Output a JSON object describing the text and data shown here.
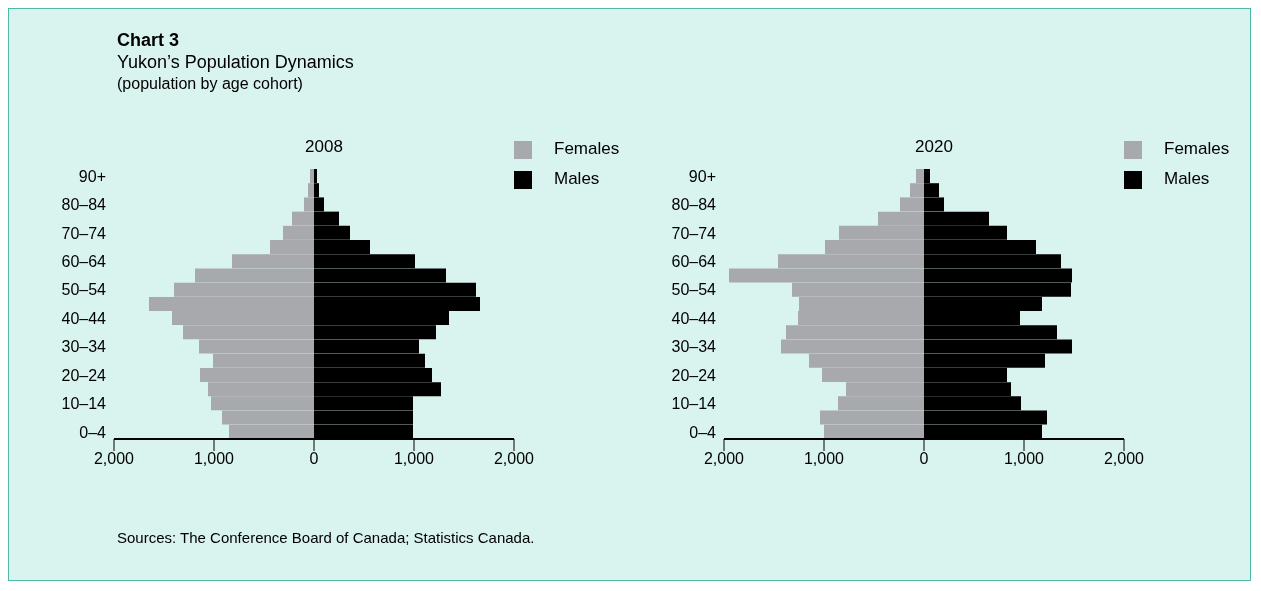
{
  "chart_data": [
    {
      "type": "bar",
      "orientation": "horizontal",
      "stacked": true,
      "title": "2008",
      "annotations": [
        "Chart 3",
        "Yukon’s Population Dynamics",
        "(population by age cohort)",
        "Sources: The Conference Board of Canada; Statistics Canada."
      ],
      "categories": [
        "90+",
        null,
        "80–84",
        null,
        "70–74",
        null,
        "60–64",
        null,
        "50–54",
        null,
        "40–44",
        null,
        "30–34",
        null,
        "20–24",
        null,
        "10–14",
        null,
        "0–4"
      ],
      "series": [
        {
          "name": "Females",
          "color": "#a7a9ac",
          "values": [
            -40,
            -60,
            -100,
            -220,
            -310,
            -440,
            -820,
            -1190,
            -1400,
            -1650,
            -1420,
            -1310,
            -1150,
            -1010,
            -1140,
            -1060,
            -1030,
            -920,
            -850
          ]
        },
        {
          "name": "Males",
          "color": "#000000",
          "values": [
            30,
            50,
            100,
            250,
            360,
            560,
            1010,
            1320,
            1620,
            1660,
            1350,
            1220,
            1050,
            1110,
            1180,
            1270,
            990,
            990,
            990
          ]
        }
      ],
      "xlim": [
        -2000,
        2000
      ],
      "xticks": [
        {
          "value": -2000,
          "label": "2,000"
        },
        {
          "value": -1000,
          "label": "1,000"
        },
        0,
        {
          "value": 1000,
          "label": "1,000"
        },
        {
          "value": 2000,
          "label": "2,000"
        }
      ],
      "legend": "top right",
      "grid": false
    },
    {
      "type": "bar",
      "orientation": "horizontal",
      "stacked": true,
      "title": "2020",
      "categories": [
        "90+",
        null,
        "80–84",
        null,
        "70–74",
        null,
        "60–64",
        null,
        "50–54",
        null,
        "40–44",
        null,
        "30–34",
        null,
        "20–24",
        null,
        "10–14",
        null,
        "0–4"
      ],
      "series": [
        {
          "name": "Females",
          "color": "#a7a9ac",
          "values": [
            -80,
            -140,
            -240,
            -460,
            -850,
            -990,
            -1460,
            -1950,
            -1320,
            -1250,
            -1260,
            -1380,
            -1430,
            -1150,
            -1020,
            -780,
            -860,
            -1040,
            -1000
          ]
        },
        {
          "name": "Males",
          "color": "#000000",
          "values": [
            60,
            150,
            200,
            650,
            830,
            1120,
            1370,
            1480,
            1470,
            1180,
            960,
            1330,
            1480,
            1210,
            830,
            870,
            970,
            1230,
            1180
          ]
        }
      ],
      "xlim": [
        -2000,
        2000
      ],
      "xticks": [
        {
          "value": -2000,
          "label": "2,000"
        },
        {
          "value": -1000,
          "label": "1,000"
        },
        0,
        {
          "value": 1000,
          "label": "1,000"
        },
        {
          "value": 2000,
          "label": "2,000"
        }
      ],
      "legend": "top right",
      "grid": false
    }
  ]
}
